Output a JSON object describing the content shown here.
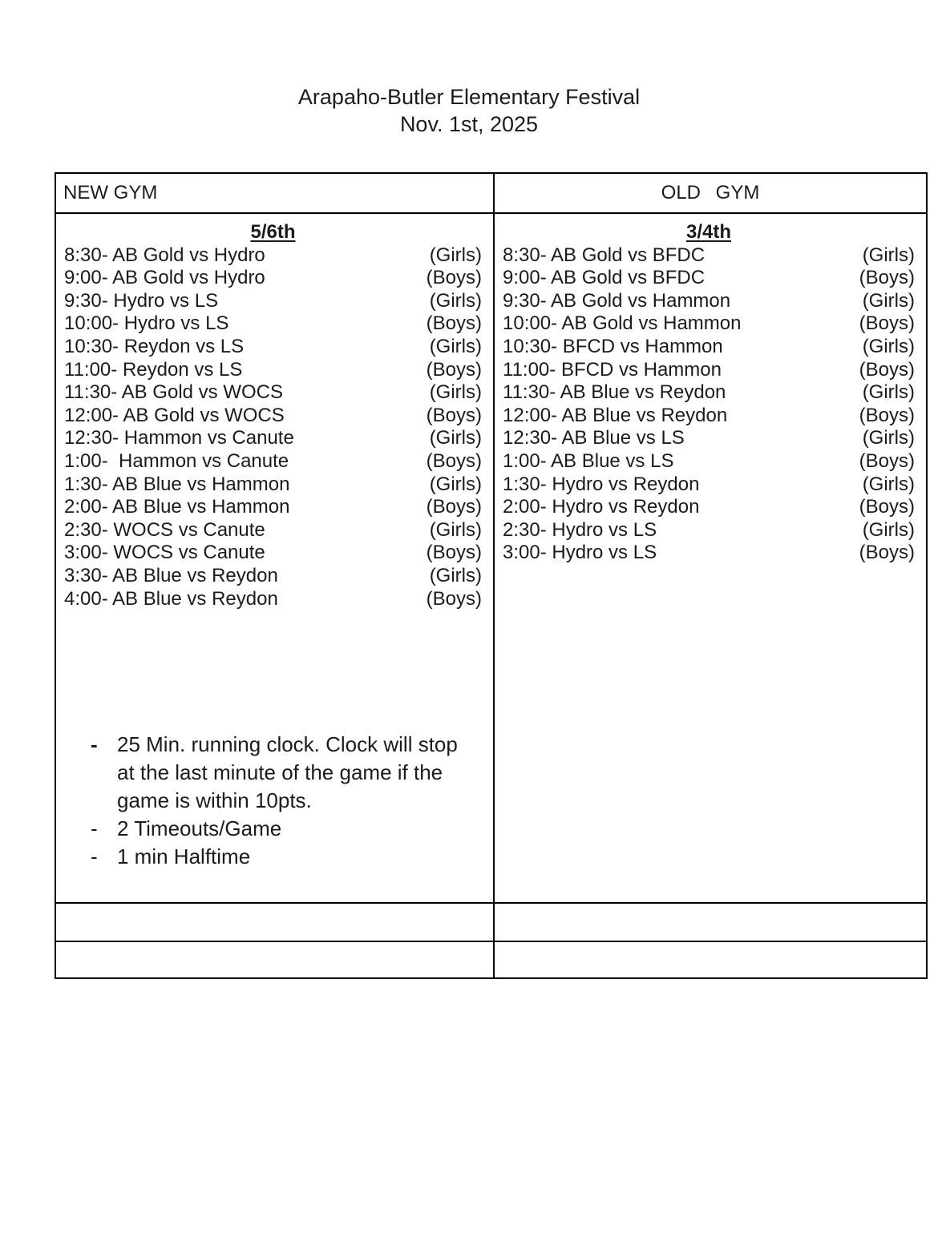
{
  "page": {
    "title": "Arapaho-Butler Elementary Festival",
    "date": "Nov. 1st, 2025"
  },
  "table": {
    "columns": [
      {
        "gym": "NEW GYM",
        "grade": "5/6th",
        "games": [
          {
            "label": "8:30- AB Gold vs Hydro",
            "division": "(Girls)"
          },
          {
            "label": "9:00- AB Gold vs Hydro",
            "division": "(Boys)"
          },
          {
            "label": "9:30- Hydro vs LS",
            "division": "(Girls)"
          },
          {
            "label": "10:00- Hydro vs LS",
            "division": "(Boys)"
          },
          {
            "label": "10:30- Reydon vs LS",
            "division": "(Girls)"
          },
          {
            "label": "11:00- Reydon vs LS",
            "division": "(Boys)"
          },
          {
            "label": "11:30- AB Gold vs WOCS",
            "division": "(Girls)"
          },
          {
            "label": "12:00- AB Gold vs WOCS",
            "division": "(Boys)"
          },
          {
            "label": "12:30- Hammon vs Canute",
            "division": "(Girls)"
          },
          {
            "label": "1:00-  Hammon vs Canute",
            "division": "(Boys)"
          },
          {
            "label": "1:30- AB Blue vs Hammon",
            "division": "(Girls)"
          },
          {
            "label": "2:00- AB Blue vs Hammon",
            "division": "(Boys)"
          },
          {
            "label": "2:30- WOCS vs Canute",
            "division": "(Girls)"
          },
          {
            "label": "3:00- WOCS vs Canute",
            "division": "(Boys)"
          },
          {
            "label": "3:30- AB Blue vs Reydon",
            "division": "(Girls)"
          },
          {
            "label": "4:00- AB Blue vs Reydon",
            "division": "(Boys)"
          }
        ]
      },
      {
        "gym": "OLD GYM",
        "grade": "3/4th",
        "games": [
          {
            "label": "8:30- AB Gold vs BFDC",
            "division": "(Girls)"
          },
          {
            "label": "9:00- AB Gold vs BFDC",
            "division": "(Boys)"
          },
          {
            "label": "9:30- AB Gold vs Hammon",
            "division": "(Girls)"
          },
          {
            "label": "10:00- AB Gold vs Hammon",
            "division": "(Boys)"
          },
          {
            "label": "10:30- BFCD vs Hammon",
            "division": "(Girls)"
          },
          {
            "label": "11:00- BFCD vs Hammon",
            "division": "(Boys)"
          },
          {
            "label": "11:30- AB Blue vs Reydon",
            "division": "(Girls)"
          },
          {
            "label": "12:00- AB Blue vs Reydon",
            "division": "(Boys)"
          },
          {
            "label": "12:30- AB Blue vs LS",
            "division": "(Girls)"
          },
          {
            "label": "1:00- AB Blue vs LS",
            "division": "(Boys)"
          },
          {
            "label": "1:30- Hydro vs Reydon",
            "division": "(Girls)"
          },
          {
            "label": "2:00- Hydro vs Reydon",
            "division": "(Boys)"
          },
          {
            "label": "2:30- Hydro vs LS",
            "division": "(Girls)"
          },
          {
            "label": "3:00- Hydro vs LS",
            "division": "(Boys)"
          }
        ]
      }
    ]
  },
  "rules": {
    "bullet_char": "-",
    "items": [
      {
        "text": "25 Min. running clock. Clock will stop at the last minute of the game if the game is within 10pts.",
        "bold_bullet": true
      },
      {
        "text": "2 Timeouts/Game",
        "bold_bullet": false
      },
      {
        "text": "1 min Halftime",
        "bold_bullet": false
      }
    ]
  },
  "colors": {
    "text": "#1b1b1b",
    "border": "#000000",
    "background": "#ffffff"
  }
}
